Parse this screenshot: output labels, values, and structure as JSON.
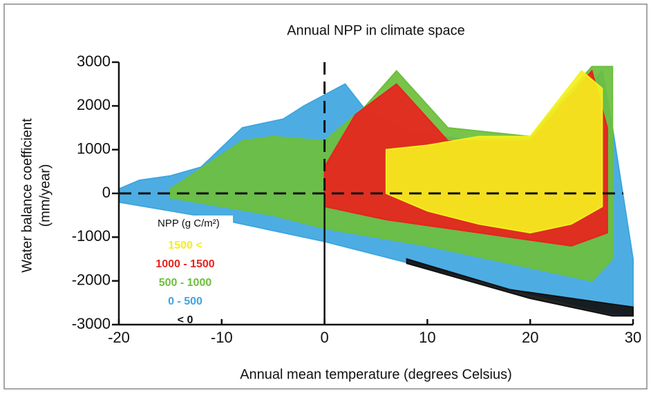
{
  "chart_data": {
    "type": "region",
    "title": "Annual NPP in climate space",
    "xlabel": "Annual mean temperature (degrees Celsius)",
    "ylabel": [
      "Water balance coefficient",
      "(mm/year)"
    ],
    "legend_title": "NPP (g C/m²)",
    "xlim": [
      -20,
      30
    ],
    "xticks": [
      -20,
      -10,
      0,
      10,
      20,
      30
    ],
    "ylim": [
      -3000,
      3000
    ],
    "yticks": [
      3000,
      2000,
      1000,
      0,
      -1000,
      -2000,
      -3000
    ],
    "series": [
      {
        "name": "0 - 500",
        "color": "#3ea6e0",
        "x": [
          -20,
          -18,
          -15,
          -12,
          -8,
          -4,
          -2,
          2,
          4,
          8,
          15,
          22,
          27,
          28,
          30,
          30,
          27,
          20,
          10,
          0,
          -10,
          -20
        ],
        "values": [
          100,
          300,
          400,
          600,
          1500,
          1700,
          2000,
          2500,
          1900,
          1400,
          1200,
          1300,
          2800,
          1500,
          -1500,
          -2800,
          -2700,
          -2300,
          -1700,
          -1100,
          -600,
          -200
        ]
      },
      {
        "name": "500 - 1000",
        "color": "#6cbf3c",
        "x": [
          -15,
          -8,
          -5,
          0,
          4,
          7,
          12,
          20,
          26,
          28,
          28,
          26,
          20,
          10,
          0,
          -5,
          -15
        ],
        "values": [
          100,
          1200,
          1300,
          1200,
          2000,
          2800,
          1500,
          1300,
          2900,
          2900,
          -1500,
          -2000,
          -1700,
          -1200,
          -800,
          -500,
          -100
        ]
      },
      {
        "name": "1000 - 1500",
        "color": "#e8231e",
        "x": [
          0,
          3,
          7,
          12,
          20,
          26,
          27.5,
          27.5,
          24,
          15,
          6,
          0
        ],
        "values": [
          600,
          1800,
          2500,
          1200,
          1200,
          2800,
          1500,
          -900,
          -1200,
          -900,
          -600,
          -300
        ]
      },
      {
        "name": "1500 <",
        "color": "#f5ef1e",
        "x": [
          6,
          10,
          15,
          20,
          25,
          27,
          27,
          24,
          20,
          15,
          10,
          6
        ],
        "values": [
          1000,
          1100,
          1300,
          1300,
          2800,
          2400,
          -300,
          -700,
          -900,
          -700,
          -400,
          0
        ]
      },
      {
        "name": "< 0",
        "color": "#111111",
        "x": [
          8,
          20,
          28,
          30,
          30,
          27,
          18,
          8
        ],
        "values": [
          -1600,
          -2400,
          -2800,
          -2800,
          -2600,
          -2500,
          -2200,
          -1500
        ]
      }
    ]
  }
}
